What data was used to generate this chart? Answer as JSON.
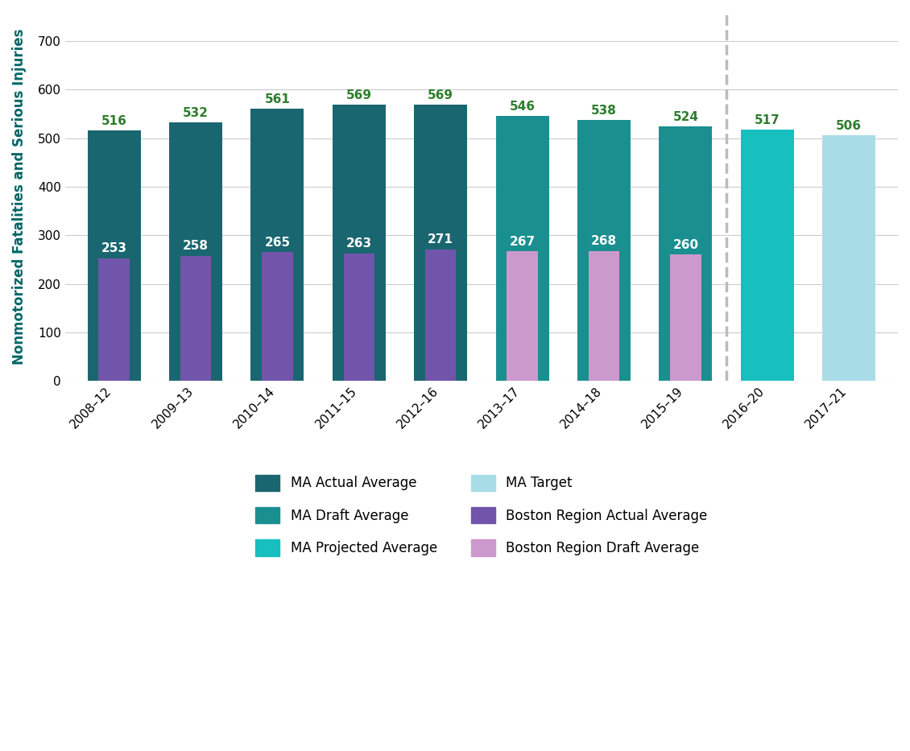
{
  "categories": [
    "2008–12",
    "2009–13",
    "2010–14",
    "2011–15",
    "2012–16",
    "2013–17",
    "2014–18",
    "2015–19",
    "2016–20",
    "2017–21"
  ],
  "ma_values": [
    516,
    532,
    561,
    569,
    569,
    546,
    538,
    524,
    517,
    506
  ],
  "boston_values": [
    253,
    258,
    265,
    263,
    271,
    267,
    268,
    260,
    null,
    null
  ],
  "ma_actual_color": "#1a6670",
  "ma_draft_color": "#1a8f8f",
  "ma_projected_color": "#17bfbf",
  "ma_target_color": "#a8dde8",
  "boston_actual_color": "#7055aa",
  "boston_draft_color": "#cc99cc",
  "value_label_color": "#2d7d2d",
  "ylabel": "Nonmotorized Fatalities and Serious Injuries",
  "ylim": [
    0,
    760
  ],
  "yticks": [
    0,
    100,
    200,
    300,
    400,
    500,
    600,
    700
  ],
  "background_color": "#ffffff",
  "grid_color": "#cccccc",
  "legend_items_col1": [
    {
      "label": "MA Actual Average",
      "color": "#1a6670"
    },
    {
      "label": "MA Projected Average",
      "color": "#17bfbf"
    },
    {
      "label": "Boston Region Actual Average",
      "color": "#7055aa"
    }
  ],
  "legend_items_col2": [
    {
      "label": "MA Draft Average",
      "color": "#1a8f8f"
    },
    {
      "label": "MA Target",
      "color": "#a8dde8"
    },
    {
      "label": "Boston Region Draft Average",
      "color": "#cc99cc"
    }
  ],
  "ma_bar_width": 0.65,
  "boston_bar_width": 0.38,
  "label_fontsize": 11,
  "tick_fontsize": 11,
  "value_fontsize": 11,
  "ylabel_fontsize": 12,
  "dashed_line_between": [
    7,
    8
  ]
}
